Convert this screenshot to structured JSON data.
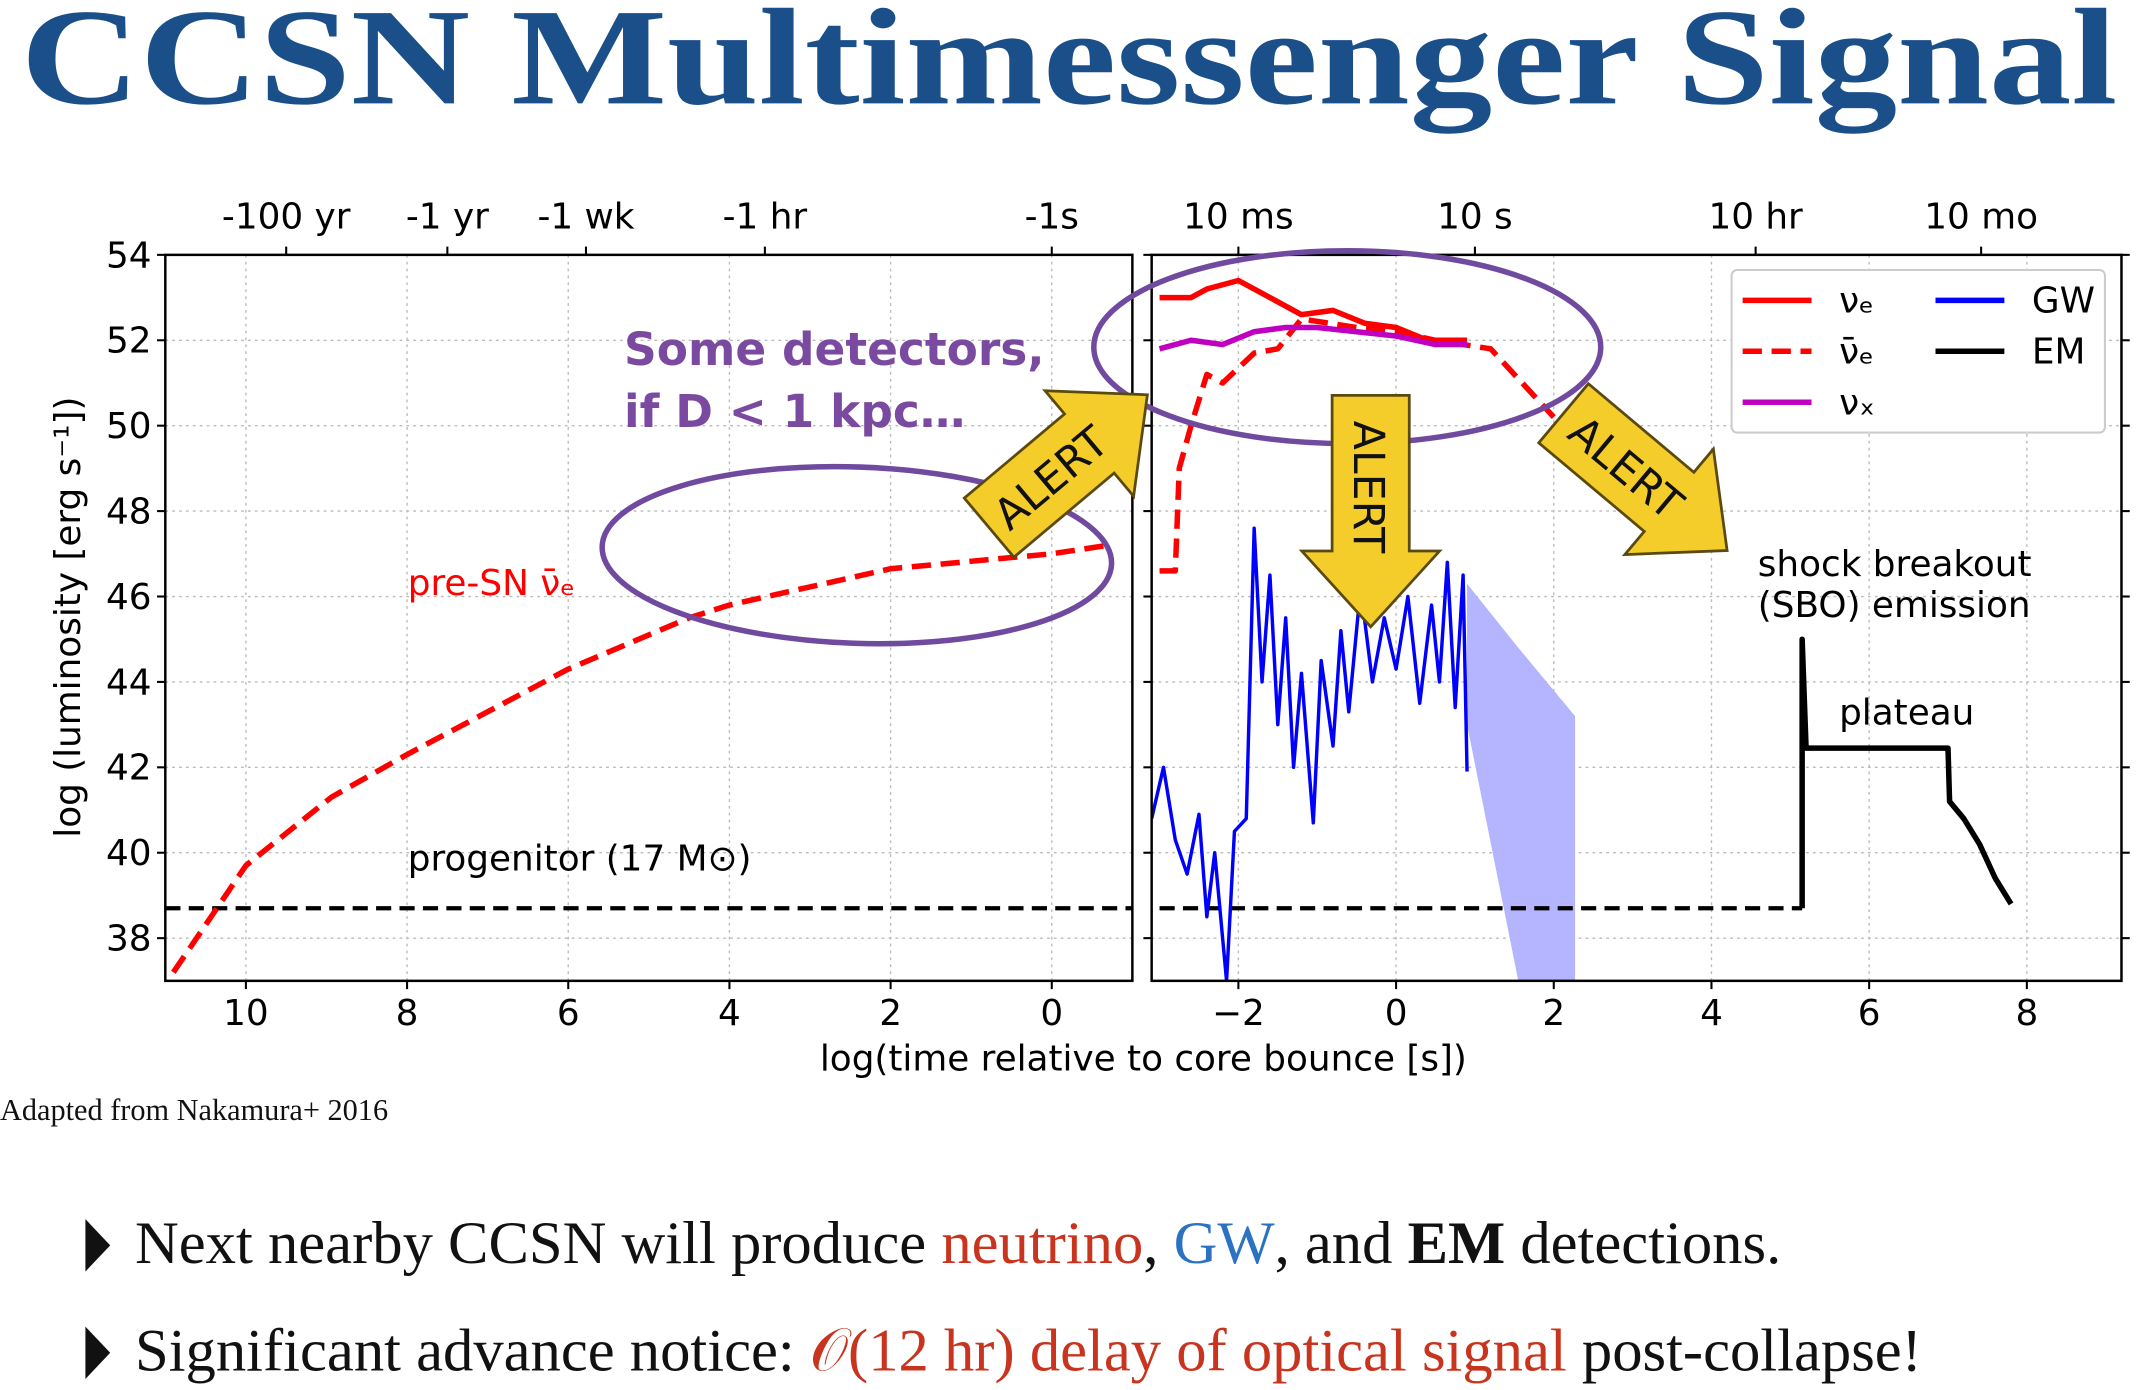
{
  "title": "CCSN Multimessenger Signal",
  "source": "Adapted from Nakamura+ 2016",
  "alerts": [
    "ALERT",
    "ALERT",
    "ALERT"
  ],
  "bullets": [
    {
      "segments": [
        {
          "text": "Next nearby CCSN will produce "
        },
        {
          "text": "neutrino",
          "color": "#c8341e"
        },
        {
          "text": ", "
        },
        {
          "text": "GW",
          "color": "#2b72c2"
        },
        {
          "text": ", and "
        },
        {
          "text": "EM",
          "bold": true
        },
        {
          "text": " detections."
        }
      ]
    },
    {
      "segments": [
        {
          "text": "Significant advance notice: "
        },
        {
          "text": "𝒪(12 hr) delay of optical signal",
          "color": "#c8341e"
        },
        {
          "text": " post-collapse!"
        }
      ]
    }
  ],
  "chart_data": [
    {
      "type": "line",
      "ylabel": "log (luminosity [erg s⁻¹])",
      "xlim": [
        11,
        -1
      ],
      "ylim": [
        37,
        54
      ],
      "xticks": [
        10,
        8,
        6,
        4,
        2,
        0
      ],
      "yticks": [
        38,
        40,
        42,
        44,
        46,
        48,
        50,
        52,
        54
      ],
      "x2ticks": [
        {
          "value": 9.5,
          "label": "-100 yr"
        },
        {
          "value": 7.5,
          "label": "-1 yr"
        },
        {
          "value": 5.78,
          "label": "-1 wk"
        },
        {
          "value": 3.56,
          "label": "-1 hr"
        },
        {
          "value": 0,
          "label": "-1s"
        }
      ],
      "grid": true,
      "hline": {
        "y": 38.7,
        "color": "#000000"
      },
      "series": [
        {
          "x": [
            10.9,
            10,
            8.94,
            8,
            6,
            4.5,
            4,
            2,
            0,
            -0.7
          ],
          "values": [
            37.2,
            39.7,
            41.3,
            42.3,
            44.3,
            45.5,
            45.8,
            46.65,
            47.0,
            47.2
          ],
          "color": "#ff0000",
          "dash": true
        }
      ],
      "annotations": [
        {
          "text": "pre-SN ν̄ₑ",
          "color": "#ff0000"
        },
        {
          "text": "progenitor (17 M⊙)",
          "color": "#000000"
        },
        {
          "text": "Some detectors,",
          "color": "#7a4aa0"
        },
        {
          "text": "if D < 1 kpc…",
          "color": "#7a4aa0"
        }
      ]
    },
    {
      "type": "line",
      "xlabel": "log(time relative to core bounce [s])",
      "xlim": [
        -3.1,
        9.2
      ],
      "ylim": [
        37,
        54
      ],
      "xticks": [
        {
          "value": -2,
          "label": "−2"
        },
        0,
        2,
        4,
        6,
        8
      ],
      "yticks": [
        38,
        40,
        42,
        44,
        46,
        48,
        50,
        52,
        54
      ],
      "x2ticks": [
        {
          "value": -2,
          "label": "10 ms"
        },
        {
          "value": 1,
          "label": "10 s"
        },
        {
          "value": 4.56,
          "label": "10 hr"
        },
        {
          "value": 7.42,
          "label": "10 mo"
        }
      ],
      "grid": true,
      "legend": "upper right",
      "hline": {
        "y": 38.7,
        "x": [
          -3,
          5.15
        ],
        "color": "#000000"
      },
      "band": {
        "x": [
          0.9,
          1.55,
          2.27
        ],
        "upper": [
          46.3,
          44.8,
          43.2
        ],
        "lower": [
          43.0,
          37.0,
          37.0
        ],
        "color": "#b4b4ff"
      },
      "series": [
        {
          "name": "νₑ",
          "color": "#ff0000",
          "x": [
            -3,
            -2.6,
            -2.4,
            -2,
            -1.6,
            -1.2,
            -0.8,
            -0.4,
            0,
            0.4,
            0.9
          ],
          "values": [
            53.0,
            53.0,
            53.2,
            53.4,
            53.0,
            52.6,
            52.7,
            52.4,
            52.3,
            52.0,
            52.0
          ]
        },
        {
          "name": "ν̄ₑ",
          "color": "#ff0000",
          "dash": true,
          "x": [
            -3,
            -2.8,
            -2.75,
            -2.6,
            -2.4,
            -2.2,
            -1.8,
            -1.5,
            -1.2,
            -0.5,
            0,
            0.5,
            1.2,
            1.6,
            2.0
          ],
          "values": [
            46.6,
            46.6,
            49.0,
            50.0,
            51.2,
            51.0,
            51.7,
            51.8,
            52.5,
            52.3,
            52.2,
            52.0,
            51.8,
            51.0,
            50.2
          ]
        },
        {
          "name": "νₓ",
          "color": "#c000c0",
          "x": [
            -3,
            -2.6,
            -2.2,
            -1.8,
            -1.4,
            -1,
            -0.5,
            0,
            0.5,
            0.9
          ],
          "values": [
            51.8,
            52.0,
            51.9,
            52.2,
            52.3,
            52.3,
            52.2,
            52.1,
            51.9,
            51.9
          ]
        },
        {
          "name": "GW",
          "color": "#0000ff",
          "x": [
            -3.1,
            -2.95,
            -2.8,
            -2.65,
            -2.5,
            -2.4,
            -2.3,
            -2.2,
            -2.15,
            -2.05,
            -1.9,
            -1.8,
            -1.7,
            -1.6,
            -1.5,
            -1.4,
            -1.3,
            -1.2,
            -1.05,
            -0.95,
            -0.8,
            -0.7,
            -0.6,
            -0.45,
            -0.3,
            -0.15,
            0,
            0.15,
            0.3,
            0.45,
            0.55,
            0.65,
            0.75,
            0.85,
            0.9
          ],
          "values": [
            40.8,
            42.0,
            40.3,
            39.5,
            40.9,
            38.5,
            40.0,
            38.0,
            37.0,
            40.5,
            40.8,
            47.6,
            44.0,
            46.5,
            43.0,
            45.5,
            42.0,
            44.2,
            40.7,
            44.5,
            42.5,
            45.2,
            43.3,
            46.2,
            44.0,
            45.5,
            44.3,
            46.0,
            43.5,
            45.8,
            44.0,
            46.8,
            43.4,
            46.5,
            41.9
          ]
        },
        {
          "name": "EM",
          "color": "#000000",
          "x": [
            5.15,
            5.15,
            5.2,
            7.0,
            7.02,
            7.2,
            7.4,
            7.6,
            7.8
          ],
          "values": [
            38.7,
            45.0,
            42.45,
            42.45,
            41.2,
            40.8,
            40.2,
            39.4,
            38.8
          ]
        }
      ],
      "annotations": [
        {
          "text": "shock breakout",
          "color": "#000000"
        },
        {
          "text": "(SBO) emission",
          "color": "#000000"
        },
        {
          "text": "plateau",
          "color": "#000000"
        }
      ]
    }
  ]
}
